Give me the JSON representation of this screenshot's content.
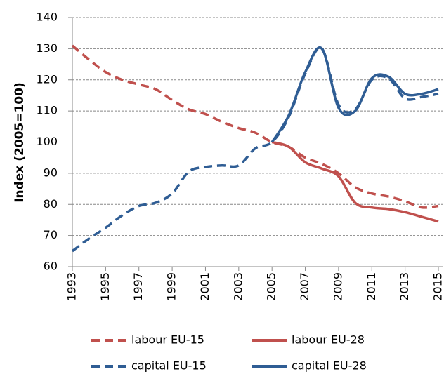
{
  "chart_data": {
    "type": "line",
    "y_label": "Index (2005=100)",
    "x": [
      1993,
      1994,
      1995,
      1996,
      1997,
      1998,
      1999,
      2000,
      2001,
      2002,
      2003,
      2004,
      2005,
      2006,
      2007,
      2008,
      2009,
      2010,
      2011,
      2012,
      2013,
      2014,
      2015
    ],
    "xlim": [
      1993,
      2015
    ],
    "xticks": [
      1993,
      1995,
      1997,
      1999,
      2001,
      2003,
      2005,
      2007,
      2009,
      2011,
      2013,
      2015
    ],
    "ylim": [
      60,
      140
    ],
    "yticks": [
      60,
      70,
      80,
      90,
      100,
      110,
      120,
      130,
      140
    ],
    "grid": true,
    "legend": "bottom",
    "series": [
      {
        "name": "labour EU-15",
        "color": "#c0504d",
        "dash": true,
        "values": [
          131,
          126.5,
          122.5,
          120,
          118.5,
          117,
          113.5,
          110.5,
          109,
          106.5,
          104.5,
          103,
          100,
          98.5,
          95,
          93,
          90,
          85.5,
          83.5,
          82.5,
          81,
          79,
          79.5
        ]
      },
      {
        "name": "labour EU-28",
        "color": "#c0504d",
        "dash": false,
        "values": [
          null,
          null,
          null,
          null,
          null,
          null,
          null,
          null,
          null,
          null,
          null,
          null,
          100,
          98.5,
          93.5,
          91.5,
          89,
          80.5,
          79,
          78.5,
          77.5,
          76,
          74.5
        ]
      },
      {
        "name": "capital EU-15",
        "color": "#2f5d94",
        "dash": true,
        "values": [
          65,
          69,
          72.5,
          76.5,
          79.5,
          80.5,
          83.5,
          90.5,
          92,
          92.5,
          92.5,
          98,
          100,
          108,
          122,
          130,
          112,
          110.5,
          120,
          120.5,
          114,
          114.5,
          115.5
        ]
      },
      {
        "name": "capital EU-28",
        "color": "#2f5d94",
        "dash": false,
        "values": [
          null,
          null,
          null,
          null,
          null,
          null,
          null,
          null,
          null,
          null,
          null,
          null,
          100,
          108.5,
          122.5,
          130,
          111,
          110,
          120.5,
          121,
          115.5,
          115.5,
          117
        ]
      }
    ]
  }
}
